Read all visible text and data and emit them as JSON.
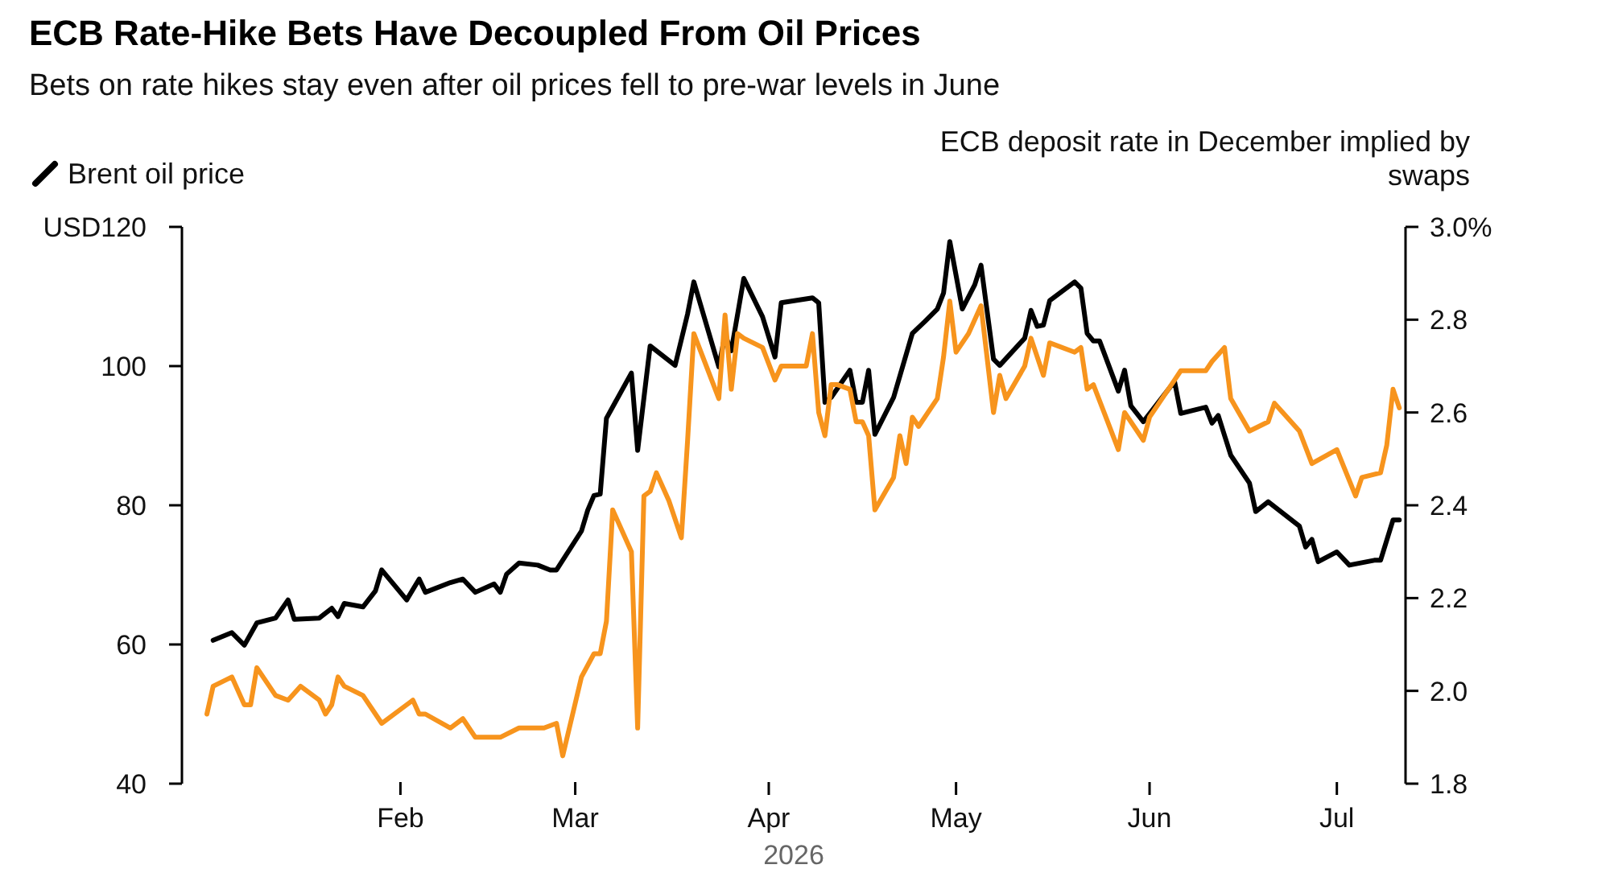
{
  "chart_data": {
    "type": "line",
    "title": "ECB Rate-Hike Bets Have Decoupled From Oil Prices",
    "subtitle": "Bets on rate hikes stay even after oil prices fell to pre-war levels in June",
    "xlabel": "2026",
    "y2label": "ECB deposit rate in December implied by swaps",
    "xlim": [
      "2025-12-28",
      "2026-07-12"
    ],
    "xticks": [
      {
        "value": "2026-02-01",
        "label": "Feb"
      },
      {
        "value": "2026-03-01",
        "label": "Mar"
      },
      {
        "value": "2026-04-01",
        "label": "Apr"
      },
      {
        "value": "2026-05-01",
        "label": "May"
      },
      {
        "value": "2026-06-01",
        "label": "Jun"
      },
      {
        "value": "2026-07-01",
        "label": "Jul"
      }
    ],
    "ylim": [
      40,
      120
    ],
    "yticks": [
      40,
      60,
      80,
      100,
      {
        "value": 120,
        "label": "USD120"
      }
    ],
    "y2lim": [
      1.8,
      3.0
    ],
    "y2ticks": [
      {
        "value": 1.8,
        "label": "1.8"
      },
      {
        "value": 2.0,
        "label": "2.0"
      },
      {
        "value": 2.2,
        "label": "2.2"
      },
      {
        "value": 2.4,
        "label": "2.4"
      },
      {
        "value": 2.6,
        "label": "2.6"
      },
      {
        "value": 2.8,
        "label": "2.8"
      },
      {
        "value": 3.0,
        "label": "3.0%"
      }
    ],
    "grid": false,
    "legend": "top left",
    "line_style": "solid",
    "series": [
      {
        "name": "Brent oil price",
        "color": "#000000",
        "x": [
          "2026-01-02",
          "2026-01-05",
          "2026-01-07",
          "2026-01-09",
          "2026-01-12",
          "2026-01-14",
          "2026-01-15",
          "2026-01-19",
          "2026-01-21",
          "2026-01-22",
          "2026-01-23",
          "2026-01-26",
          "2026-01-28",
          "2026-01-29",
          "2026-02-02",
          "2026-02-04",
          "2026-02-05",
          "2026-02-09",
          "2026-02-11",
          "2026-02-13",
          "2026-02-16",
          "2026-02-17",
          "2026-02-18",
          "2026-02-20",
          "2026-02-23",
          "2026-02-25",
          "2026-02-26",
          "2026-03-02",
          "2026-03-03",
          "2026-03-04",
          "2026-03-05",
          "2026-03-06",
          "2026-03-10",
          "2026-03-11",
          "2026-03-13",
          "2026-03-17",
          "2026-03-19",
          "2026-03-20",
          "2026-03-24",
          "2026-03-25",
          "2026-03-26",
          "2026-03-28",
          "2026-03-31",
          "2026-04-02",
          "2026-04-03",
          "2026-04-08",
          "2026-04-09",
          "2026-04-10",
          "2026-04-11",
          "2026-04-14",
          "2026-04-15",
          "2026-04-16",
          "2026-04-17",
          "2026-04-18",
          "2026-04-21",
          "2026-04-24",
          "2026-04-26",
          "2026-04-28",
          "2026-04-29",
          "2026-04-30",
          "2026-05-02",
          "2026-05-04",
          "2026-05-05",
          "2026-05-07",
          "2026-05-08",
          "2026-05-12",
          "2026-05-13",
          "2026-05-14",
          "2026-05-15",
          "2026-05-16",
          "2026-05-20",
          "2026-05-21",
          "2026-05-22",
          "2026-05-23",
          "2026-05-24",
          "2026-05-27",
          "2026-05-28",
          "2026-05-29",
          "2026-05-31",
          "2026-06-05",
          "2026-06-06",
          "2026-06-10",
          "2026-06-11",
          "2026-06-12",
          "2026-06-14",
          "2026-06-17",
          "2026-06-18",
          "2026-06-20",
          "2026-06-25",
          "2026-06-26",
          "2026-06-27",
          "2026-06-28",
          "2026-07-01",
          "2026-07-03",
          "2026-07-07",
          "2026-07-08",
          "2026-07-10",
          "2026-07-11"
        ],
        "values": [
          60.6,
          61.7,
          59.9,
          63.1,
          63.8,
          66.4,
          63.6,
          63.8,
          65.2,
          64.0,
          65.9,
          65.4,
          67.7,
          70.7,
          66.4,
          69.4,
          67.5,
          68.9,
          69.4,
          67.5,
          68.7,
          67.5,
          70.1,
          71.7,
          71.4,
          70.7,
          70.7,
          76.3,
          79.3,
          81.4,
          81.6,
          92.5,
          99.0,
          87.9,
          102.9,
          100.1,
          107.5,
          112.1,
          99.9,
          104.5,
          102.2,
          112.6,
          107.1,
          101.3,
          109.1,
          109.8,
          109.1,
          94.8,
          95.5,
          99.4,
          94.8,
          94.8,
          99.4,
          90.2,
          95.5,
          104.7,
          106.4,
          108.2,
          110.5,
          117.9,
          108.2,
          111.7,
          114.5,
          101.0,
          100.1,
          104.0,
          108.0,
          105.7,
          105.9,
          109.4,
          112.1,
          111.2,
          104.7,
          103.6,
          103.6,
          96.4,
          99.4,
          94.3,
          92.0,
          97.8,
          93.2,
          94.1,
          91.8,
          92.9,
          87.2,
          83.2,
          79.1,
          80.5,
          77.0,
          74.0,
          75.1,
          71.9,
          73.3,
          71.4,
          72.1,
          72.1,
          77.9,
          77.9
        ]
      },
      {
        "color": "#f7941d",
        "axis": "y2",
        "x": [
          "2026-01-01",
          "2026-01-02",
          "2026-01-05",
          "2026-01-07",
          "2026-01-08",
          "2026-01-09",
          "2026-01-12",
          "2026-01-14",
          "2026-01-16",
          "2026-01-19",
          "2026-01-20",
          "2026-01-21",
          "2026-01-22",
          "2026-01-23",
          "2026-01-26",
          "2026-01-29",
          "2026-02-03",
          "2026-02-04",
          "2026-02-05",
          "2026-02-09",
          "2026-02-11",
          "2026-02-13",
          "2026-02-17",
          "2026-02-20",
          "2026-02-24",
          "2026-02-26",
          "2026-02-27",
          "2026-03-02",
          "2026-03-04",
          "2026-03-05",
          "2026-03-06",
          "2026-03-07",
          "2026-03-10",
          "2026-03-11",
          "2026-03-12",
          "2026-03-13",
          "2026-03-14",
          "2026-03-16",
          "2026-03-18",
          "2026-03-19",
          "2026-03-20",
          "2026-03-24",
          "2026-03-25",
          "2026-03-26",
          "2026-03-27",
          "2026-03-28",
          "2026-03-31",
          "2026-04-02",
          "2026-04-03",
          "2026-04-07",
          "2026-04-08",
          "2026-04-09",
          "2026-04-10",
          "2026-04-11",
          "2026-04-12",
          "2026-04-14",
          "2026-04-15",
          "2026-04-16",
          "2026-04-17",
          "2026-04-18",
          "2026-04-21",
          "2026-04-22",
          "2026-04-23",
          "2026-04-24",
          "2026-04-25",
          "2026-04-28",
          "2026-04-29",
          "2026-04-30",
          "2026-05-01",
          "2026-05-03",
          "2026-05-05",
          "2026-05-07",
          "2026-05-08",
          "2026-05-09",
          "2026-05-12",
          "2026-05-13",
          "2026-05-15",
          "2026-05-16",
          "2026-05-20",
          "2026-05-21",
          "2026-05-22",
          "2026-05-23",
          "2026-05-27",
          "2026-05-28",
          "2026-05-31",
          "2026-06-01",
          "2026-06-05",
          "2026-06-06",
          "2026-06-10",
          "2026-06-11",
          "2026-06-13",
          "2026-06-14",
          "2026-06-17",
          "2026-06-20",
          "2026-06-21",
          "2026-06-25",
          "2026-06-27",
          "2026-07-01",
          "2026-07-04",
          "2026-07-05",
          "2026-07-08",
          "2026-07-09",
          "2026-07-10",
          "2026-07-11"
        ],
        "values": [
          1.95,
          2.01,
          2.03,
          1.97,
          1.97,
          2.05,
          1.99,
          1.98,
          2.01,
          1.98,
          1.95,
          1.97,
          2.03,
          2.01,
          1.99,
          1.93,
          1.98,
          1.95,
          1.95,
          1.92,
          1.94,
          1.9,
          1.9,
          1.92,
          1.92,
          1.93,
          1.86,
          2.03,
          2.08,
          2.08,
          2.15,
          2.39,
          2.3,
          1.92,
          2.42,
          2.43,
          2.47,
          2.41,
          2.33,
          2.54,
          2.77,
          2.63,
          2.81,
          2.65,
          2.77,
          2.76,
          2.74,
          2.67,
          2.7,
          2.7,
          2.77,
          2.6,
          2.55,
          2.66,
          2.66,
          2.65,
          2.58,
          2.58,
          2.55,
          2.39,
          2.46,
          2.55,
          2.49,
          2.59,
          2.57,
          2.63,
          2.72,
          2.84,
          2.73,
          2.77,
          2.83,
          2.6,
          2.68,
          2.63,
          2.7,
          2.76,
          2.68,
          2.75,
          2.73,
          2.74,
          2.65,
          2.66,
          2.52,
          2.6,
          2.54,
          2.59,
          2.67,
          2.69,
          2.69,
          2.71,
          2.74,
          2.63,
          2.56,
          2.58,
          2.62,
          2.56,
          2.49,
          2.52,
          2.42,
          2.46,
          2.47,
          2.53,
          2.65,
          2.61
        ]
      }
    ]
  }
}
